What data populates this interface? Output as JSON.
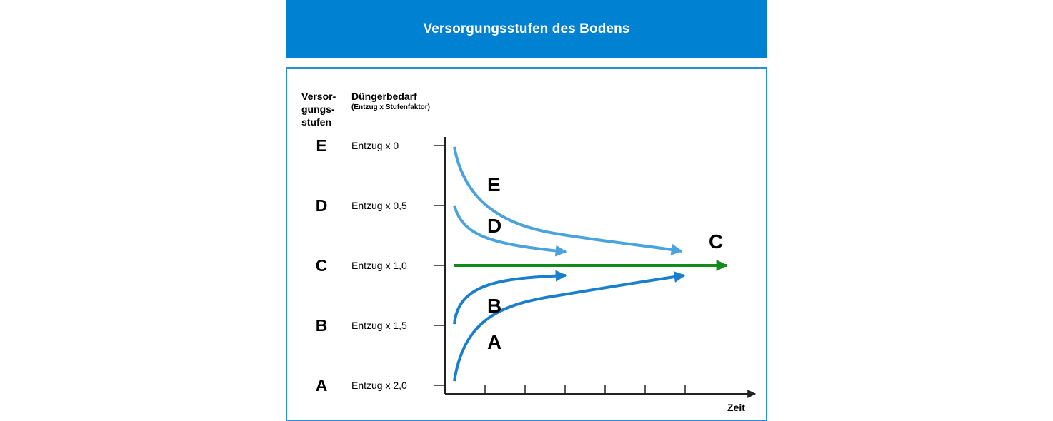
{
  "header": {
    "title": "Versorgungsstufen des Bodens"
  },
  "columns": {
    "stufen": [
      "Versor-",
      "gungs-",
      "stufen"
    ],
    "duenger": "Düngerbedarf",
    "duenger_sub": "(Entzug x Stufenfaktor)"
  },
  "levels": [
    {
      "letter": "E",
      "factor": "Entzug x 0"
    },
    {
      "letter": "D",
      "factor": "Entzug x 0,5"
    },
    {
      "letter": "C",
      "factor": "Entzug x 1,0"
    },
    {
      "letter": "B",
      "factor": "Entzug x 1,5"
    },
    {
      "letter": "A",
      "factor": "Entzug x 2,0"
    }
  ],
  "axis": {
    "xlabel": "Zeit"
  },
  "curve_labels": {
    "E": "E",
    "D": "D",
    "C": "C",
    "B": "B",
    "A": "A"
  },
  "colors": {
    "header": "#0081d2",
    "upper_curves": "#4aa3dc",
    "lower_curves": "#1a7fcb",
    "target_line": "#138a1a"
  }
}
